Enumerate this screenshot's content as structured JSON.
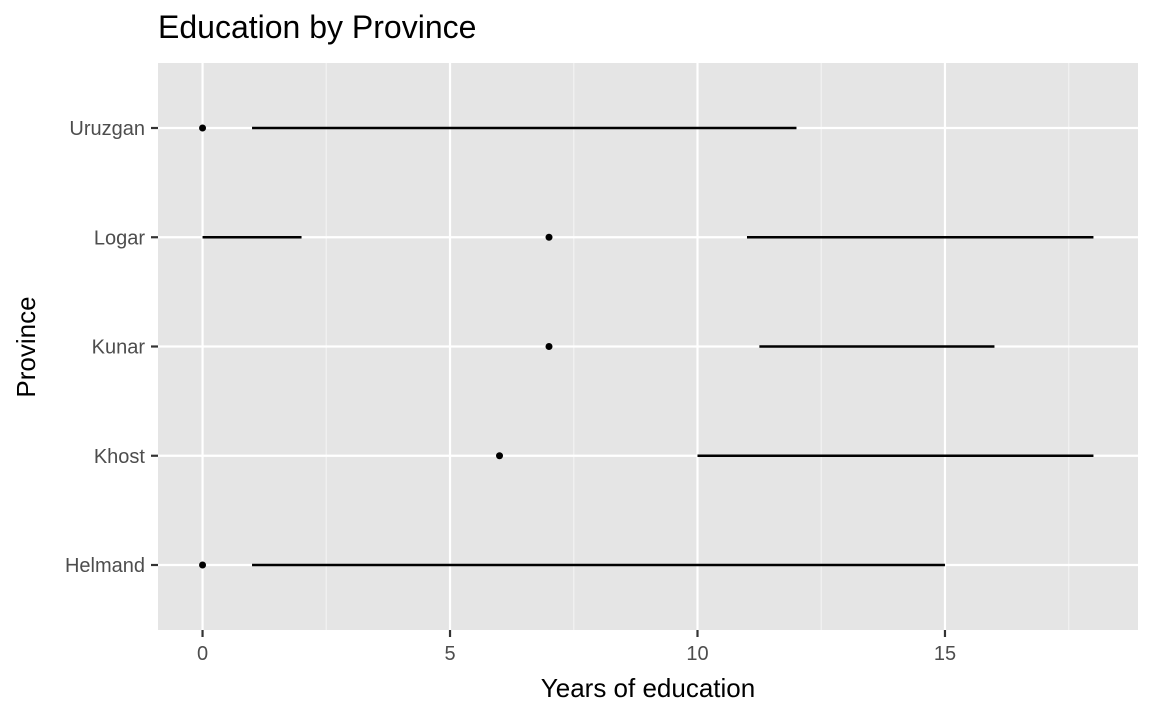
{
  "chart_data": {
    "type": "dot-and-range",
    "title": "Education by Province",
    "xlabel": "Years of education",
    "ylabel": "Province",
    "xlim": [
      -0.9,
      18.9
    ],
    "x_ticks": [
      0,
      5,
      10,
      15
    ],
    "grid": true,
    "categories": [
      "Helmand",
      "Khost",
      "Kunar",
      "Logar",
      "Uruzgan"
    ],
    "series": [
      {
        "mark": "point",
        "values": [
          {
            "category": "Uruzgan",
            "x": 0
          },
          {
            "category": "Logar",
            "x": 7
          },
          {
            "category": "Kunar",
            "x": 7
          },
          {
            "category": "Khost",
            "x": 6
          },
          {
            "category": "Helmand",
            "x": 0
          }
        ]
      },
      {
        "mark": "segment",
        "values": [
          {
            "category": "Uruzgan",
            "x_start": 1,
            "x_end": 12
          },
          {
            "category": "Logar",
            "x_start": 0,
            "x_end": 2
          },
          {
            "category": "Logar",
            "x_start": 11,
            "x_end": 18
          },
          {
            "category": "Kunar",
            "x_start": 11.25,
            "x_end": 16
          },
          {
            "category": "Khost",
            "x_start": 10,
            "x_end": 18
          },
          {
            "category": "Helmand",
            "x_start": 1,
            "x_end": 15
          }
        ]
      }
    ]
  }
}
